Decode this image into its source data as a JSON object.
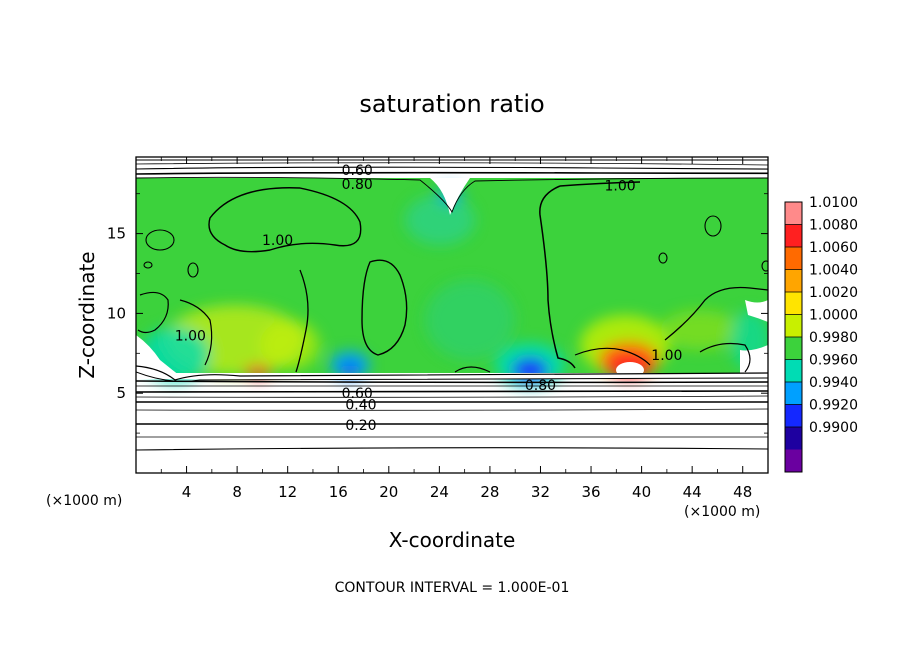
{
  "chart_data": {
    "type": "heatmap",
    "title": "saturation ratio",
    "xlabel": "X-coordinate",
    "ylabel": "Z-coordinate",
    "x_unit": "(×1000 m)",
    "y_unit": "(×1000 m)",
    "xlim": [
      0,
      50
    ],
    "ylim": [
      0,
      19.8
    ],
    "x_ticks": [
      4,
      8,
      12,
      16,
      20,
      24,
      28,
      32,
      36,
      40,
      44,
      48
    ],
    "y_ticks": [
      5,
      10,
      15
    ],
    "colorbar": {
      "min": 0.99,
      "max": 1.01,
      "labels": [
        "1.0100",
        "1.0080",
        "1.0060",
        "1.0040",
        "1.0020",
        "1.0000",
        "0.9980",
        "0.9960",
        "0.9940",
        "0.9920",
        "0.9900"
      ],
      "colors": [
        "#ff8a8a",
        "#ff2020",
        "#ff6a00",
        "#ffa500",
        "#ffe400",
        "#c8f000",
        "#3cd23c",
        "#00dcb4",
        "#00a0ff",
        "#1428ff",
        "#1e00a0",
        "#6a00a0"
      ]
    },
    "contour_interval_text": "CONTOUR INTERVAL = 1.000E-01",
    "contour_labels": [
      {
        "text": "0.60",
        "x": 17.5,
        "y": 19.0
      },
      {
        "text": "0.80",
        "x": 17.5,
        "y": 18.1
      },
      {
        "text": "1.00",
        "x": 38.3,
        "y": 18.0
      },
      {
        "text": "1.00",
        "x": 11.2,
        "y": 14.6
      },
      {
        "text": "1.00",
        "x": 4.3,
        "y": 8.6
      },
      {
        "text": "1.00",
        "x": 42.0,
        "y": 7.4
      },
      {
        "text": "0.80",
        "x": 32.0,
        "y": 5.5
      },
      {
        "text": "0.60",
        "x": 17.5,
        "y": 5.0
      },
      {
        "text": "0.40",
        "x": 17.8,
        "y": 4.3
      },
      {
        "text": "0.20",
        "x": 17.8,
        "y": 3.0
      }
    ],
    "field_features": [
      {
        "kind": "maximum",
        "x": 38.8,
        "y": 6.7,
        "level": 1.0095
      },
      {
        "kind": "maximum",
        "x": 9.8,
        "y": 6.2,
        "level": 1.006
      },
      {
        "kind": "maximum",
        "x": 7.5,
        "y": 8.0,
        "level": 1.0025
      },
      {
        "kind": "maximum",
        "x": 11.5,
        "y": 8.0,
        "level": 1.002
      },
      {
        "kind": "minimum",
        "x": 30.8,
        "y": 6.7,
        "level": 0.9925
      },
      {
        "kind": "minimum",
        "x": 16.8,
        "y": 6.6,
        "level": 0.9945
      },
      {
        "kind": "minimum",
        "x": 25.0,
        "y": 17.3,
        "level": 0.996
      }
    ]
  }
}
